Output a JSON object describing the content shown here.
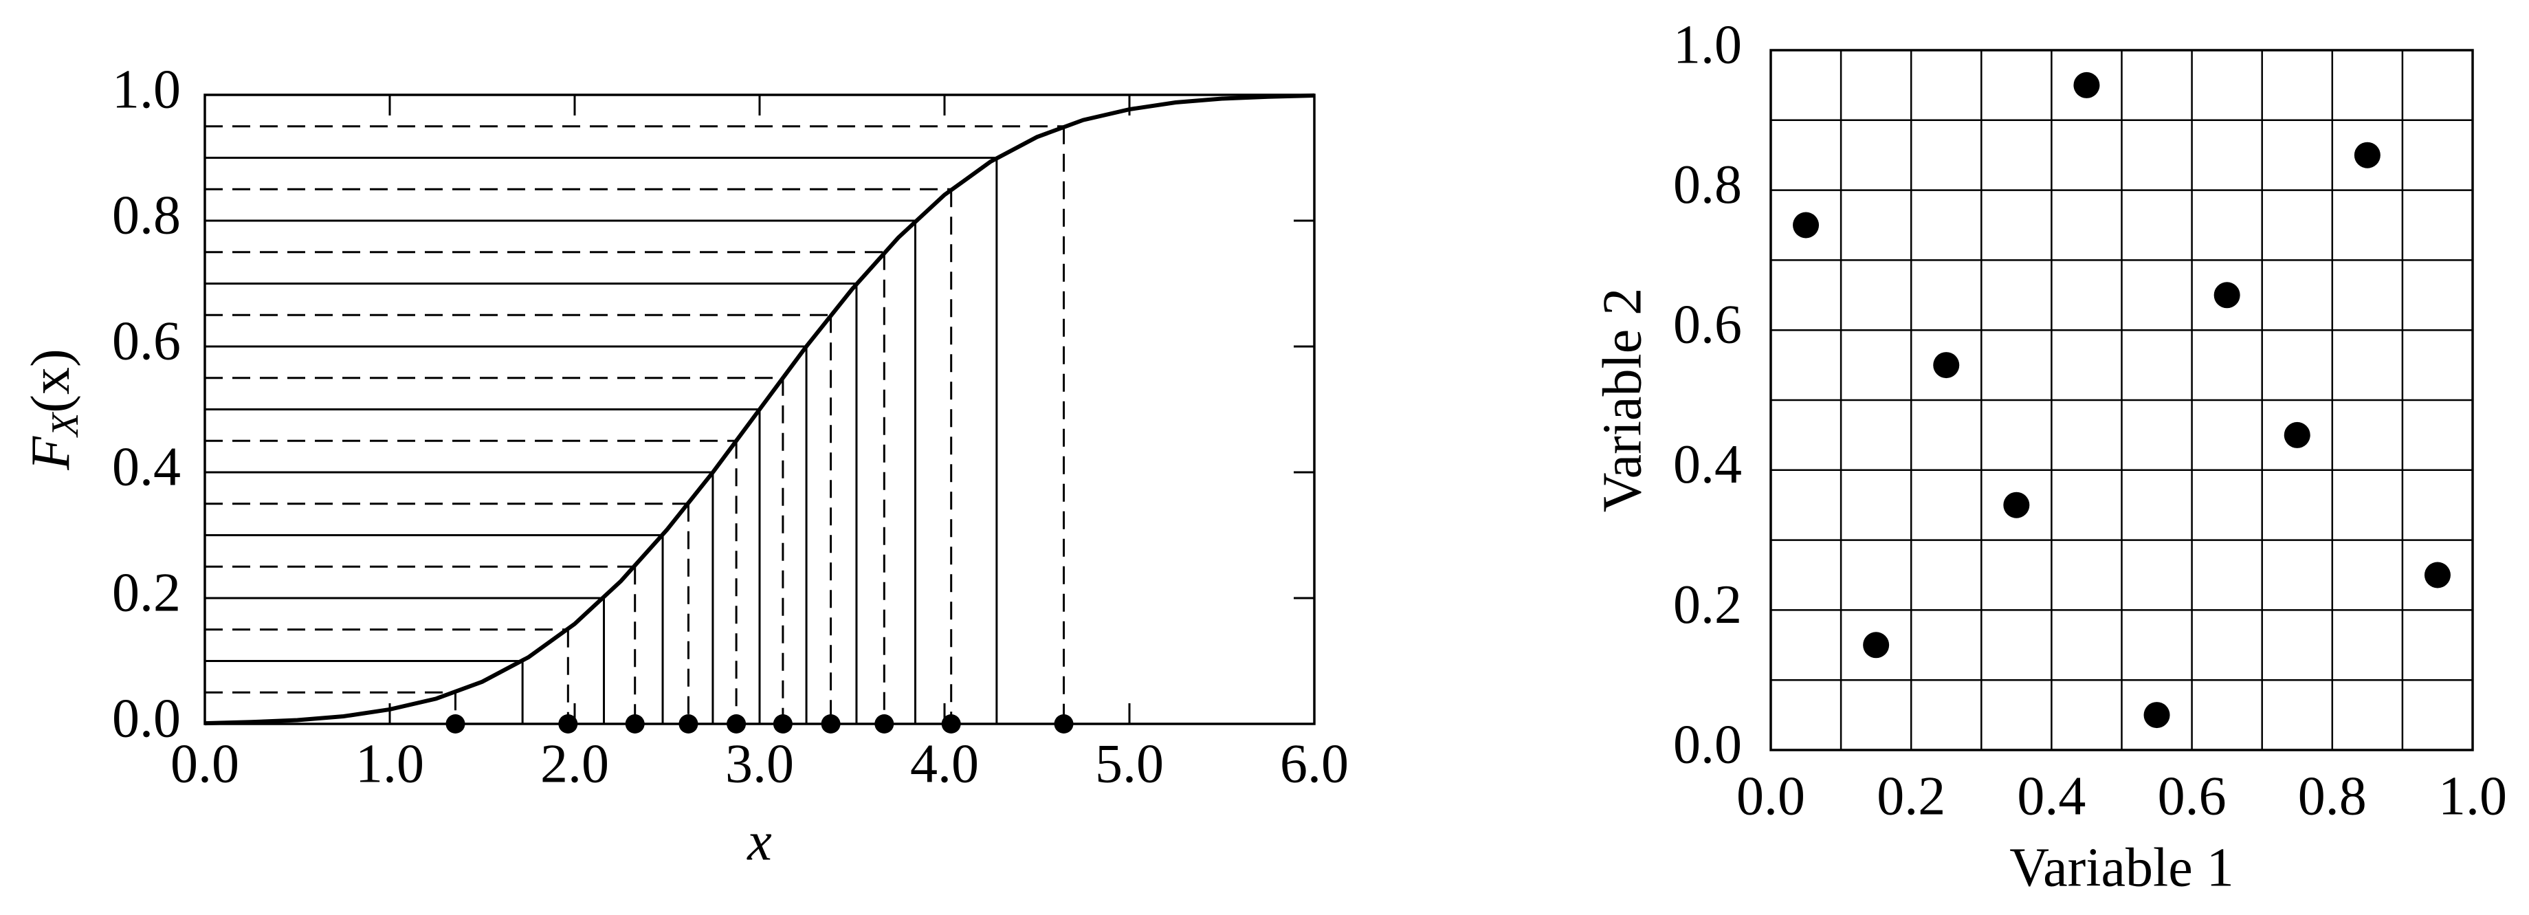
{
  "chart_data": [
    {
      "type": "line",
      "xlabel": "x",
      "ylabel": "F",
      "ylabel_subscript": "X",
      "ylabel_suffix": "(x)",
      "x": [
        0,
        0.25,
        0.5,
        0.75,
        1,
        1.25,
        1.5,
        1.75,
        2,
        2.25,
        2.5,
        2.75,
        3,
        3.25,
        3.5,
        3.75,
        4,
        4.25,
        4.5,
        4.75,
        5,
        5.25,
        5.5,
        5.75,
        6
      ],
      "values": [
        0.001,
        0.003,
        0.006,
        0.012,
        0.023,
        0.04,
        0.067,
        0.106,
        0.159,
        0.227,
        0.309,
        0.401,
        0.5,
        0.599,
        0.691,
        0.773,
        0.841,
        0.894,
        0.933,
        0.96,
        0.977,
        0.988,
        0.994,
        0.997,
        0.999
      ],
      "samples": {
        "probabilities": [
          0.05,
          0.15,
          0.25,
          0.35,
          0.45,
          0.55,
          0.65,
          0.75,
          0.85,
          0.95
        ],
        "x": [
          1.355,
          1.964,
          2.326,
          2.615,
          2.874,
          3.126,
          3.385,
          3.674,
          4.036,
          4.645
        ]
      },
      "strata": {
        "probabilities": [
          0.1,
          0.2,
          0.3,
          0.4,
          0.5,
          0.6,
          0.7,
          0.8,
          0.9
        ],
        "x": [
          1.718,
          2.158,
          2.476,
          2.747,
          3.0,
          3.253,
          3.524,
          3.842,
          4.282
        ]
      },
      "xlim": [
        0,
        6
      ],
      "xticks": [
        {
          "value": 0,
          "label": "0.0"
        },
        {
          "value": 1,
          "label": "1.0"
        },
        {
          "value": 2,
          "label": "2.0"
        },
        {
          "value": 3,
          "label": "3.0"
        },
        {
          "value": 4,
          "label": "4.0"
        },
        {
          "value": 5,
          "label": "5.0"
        },
        {
          "value": 6,
          "label": "6.0"
        }
      ],
      "ylim": [
        0,
        1
      ],
      "yticks": [
        {
          "value": 0,
          "label": "0.0"
        },
        0.2,
        0.4,
        0.6,
        0.8,
        {
          "value": 1,
          "label": "1.0"
        }
      ],
      "color": "#000000"
    },
    {
      "type": "scatter",
      "xlabel": "Variable 1",
      "ylabel": "Variable 2",
      "x": [
        0.05,
        0.15,
        0.25,
        0.35,
        0.45,
        0.55,
        0.65,
        0.75,
        0.85,
        0.95
      ],
      "values": [
        0.75,
        0.15,
        0.55,
        0.35,
        0.95,
        0.05,
        0.65,
        0.45,
        0.85,
        0.25
      ],
      "xlim": [
        0,
        1
      ],
      "ylim": [
        0,
        1
      ],
      "xticks": [
        {
          "value": 0,
          "label": "0.0"
        },
        0.2,
        0.4,
        0.6,
        0.8,
        {
          "value": 1,
          "label": "1.0"
        }
      ],
      "yticks": [
        {
          "value": 0,
          "label": "0.0"
        },
        0.2,
        0.4,
        0.6,
        0.8,
        {
          "value": 1,
          "label": "1.0"
        }
      ],
      "grid_lines": [
        0.1,
        0.2,
        0.3,
        0.4,
        0.5,
        0.6,
        0.7,
        0.8,
        0.9
      ],
      "color": "#000000"
    }
  ]
}
